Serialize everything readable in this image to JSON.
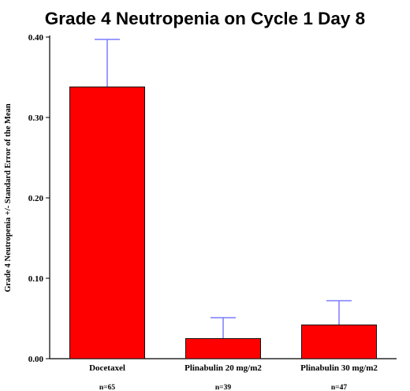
{
  "chart_data": {
    "type": "bar",
    "title": "Grade 4 Neutropenia on Cycle 1 Day 8",
    "ylabel": "Grade 4 Neutropenia +/- Standard Error of the Mean",
    "xlabel": "",
    "categories": [
      "Docetaxel",
      "Plinabulin 20 mg/m2",
      "Plinabulin 30 mg/m2"
    ],
    "n_labels": [
      "n=65",
      "n=39",
      "n=47"
    ],
    "values": [
      0.338,
      0.025,
      0.042
    ],
    "error_upper": [
      0.397,
      0.051,
      0.072
    ],
    "ylim": [
      0,
      0.4
    ],
    "yticks": [
      0,
      0.1,
      0.2,
      0.3,
      0.4
    ],
    "ytick_labels": [
      "0.00",
      "0.10",
      "0.20",
      "0.30",
      "0.40"
    ],
    "grid": false,
    "colors": {
      "bar": "#ff0000",
      "bar_outline": "#111111",
      "error_bar": "#7b7bff"
    }
  }
}
